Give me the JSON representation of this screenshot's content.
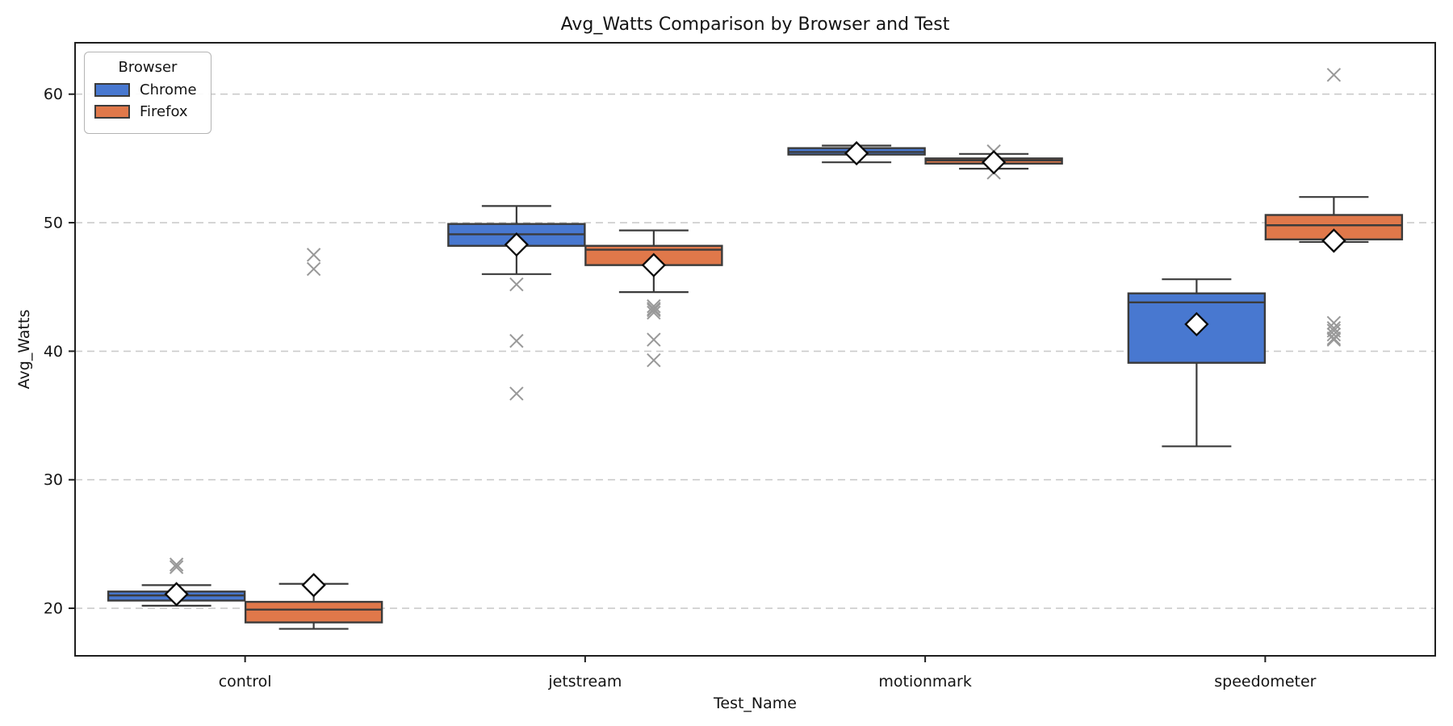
{
  "figure": {
    "title": "Avg_Watts Comparison by Browser and Test"
  },
  "axes": {
    "xlabel": "Test_Name",
    "ylabel": "Avg_Watts",
    "yticks": [
      20,
      30,
      40,
      50,
      60
    ],
    "ylim": [
      16.3,
      64.0
    ],
    "grid": {
      "axis": "y",
      "style": "dashed",
      "color": "#cbcbcb"
    }
  },
  "legend": {
    "title": "Browser",
    "entries": [
      {
        "label": "Chrome",
        "color": "#4878D0"
      },
      {
        "label": "Firefox",
        "color": "#E0784A"
      }
    ]
  },
  "chart_data": {
    "type": "boxplot",
    "title": "Avg_Watts Comparison by Browser and Test",
    "xlabel": "Test_Name",
    "ylabel": "Avg_Watts",
    "group_by": "Test_Name",
    "hue": "Browser",
    "categories": [
      "control",
      "jetstream",
      "motionmark",
      "speedometer"
    ],
    "ylim": [
      16.3,
      64.0
    ],
    "grid": "horizontal-dashed",
    "legend_position": "upper-left",
    "mean_marker": "white-diamond",
    "outlier_marker": "x",
    "series": [
      {
        "name": "Chrome",
        "color": "#4878D0",
        "boxes": [
          {
            "category": "control",
            "whisker_low": 20.2,
            "q1": 20.6,
            "median": 21.0,
            "q3": 21.3,
            "whisker_high": 21.8,
            "mean": 21.1,
            "outliers": [
              23.2,
              23.4
            ]
          },
          {
            "category": "jetstream",
            "whisker_low": 46.0,
            "q1": 48.2,
            "median": 49.1,
            "q3": 49.9,
            "whisker_high": 51.3,
            "mean": 48.3,
            "outliers": [
              45.2,
              40.8,
              36.7
            ]
          },
          {
            "category": "motionmark",
            "whisker_low": 54.7,
            "q1": 55.3,
            "median": 55.5,
            "q3": 55.8,
            "whisker_high": 56.0,
            "mean": 55.4,
            "outliers": []
          },
          {
            "category": "speedometer",
            "whisker_low": 32.6,
            "q1": 39.1,
            "median": 43.8,
            "q3": 44.5,
            "whisker_high": 45.6,
            "mean": 42.1,
            "outliers": []
          }
        ]
      },
      {
        "name": "Firefox",
        "color": "#E0784A",
        "boxes": [
          {
            "category": "control",
            "whisker_low": 18.4,
            "q1": 18.9,
            "median": 19.9,
            "q3": 20.5,
            "whisker_high": 21.9,
            "mean": 21.8,
            "outliers": [
              47.5,
              46.4
            ]
          },
          {
            "category": "jetstream",
            "whisker_low": 44.6,
            "q1": 46.7,
            "median": 47.9,
            "q3": 48.2,
            "whisker_high": 49.4,
            "mean": 46.7,
            "outliers": [
              43.5,
              43.3,
              43.2,
              43.0,
              40.9,
              39.3
            ]
          },
          {
            "category": "motionmark",
            "whisker_low": 54.2,
            "q1": 54.6,
            "median": 54.85,
            "q3": 55.0,
            "whisker_high": 55.35,
            "mean": 54.7,
            "outliers": [
              55.55,
              53.9
            ]
          },
          {
            "category": "speedometer",
            "whisker_low": 48.5,
            "q1": 48.7,
            "median": 49.8,
            "q3": 50.6,
            "whisker_high": 52.0,
            "mean": 48.6,
            "outliers": [
              61.5,
              42.2,
              41.8,
              41.6,
              41.3,
              41.0,
              40.9
            ]
          }
        ]
      }
    ]
  },
  "style": {
    "box_edge": "#3b3b3b",
    "whisker": "#3b3b3b",
    "median": "#3b3b3b",
    "grid_color": "#cbcbcb",
    "spine": "#1f1f1f",
    "flier": "#999999",
    "mean_fill": "#ffffff",
    "mean_edge": "#0a0a0a",
    "text": "#141414",
    "background": "#ffffff"
  }
}
